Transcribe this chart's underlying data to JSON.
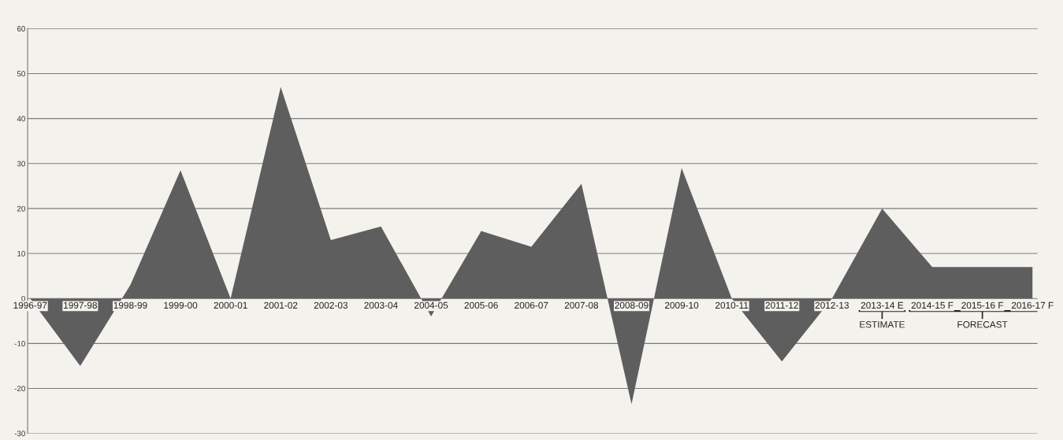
{
  "chart_data": {
    "type": "area",
    "categories": [
      "1996-97",
      "1997-98",
      "1998-99",
      "1999-00",
      "2000-01",
      "2001-02",
      "2002-03",
      "2003-04",
      "2004-05",
      "2005-06",
      "2006-07",
      "2007-08",
      "2008-09",
      "2009-10",
      "2010-11",
      "2011-12",
      "2012-13",
      "2013-14 E",
      "2014-15 F",
      "2015-16 F",
      "2016-17 F"
    ],
    "series": [
      {
        "color": "#5e5e5e",
        "values": [
          0,
          -15,
          3,
          28.5,
          0,
          47,
          13,
          16,
          -4,
          15,
          11.5,
          25.5,
          -23.5,
          29,
          0,
          -14,
          0,
          20,
          7,
          7,
          7
        ]
      }
    ],
    "ylim": [
      -30,
      60
    ],
    "yticks": [
      -30,
      -20,
      -10,
      0,
      10,
      20,
      30,
      40,
      50,
      60
    ],
    "grid": "y",
    "annotations": [
      "ESTIMATE",
      "FORECAST"
    ]
  }
}
